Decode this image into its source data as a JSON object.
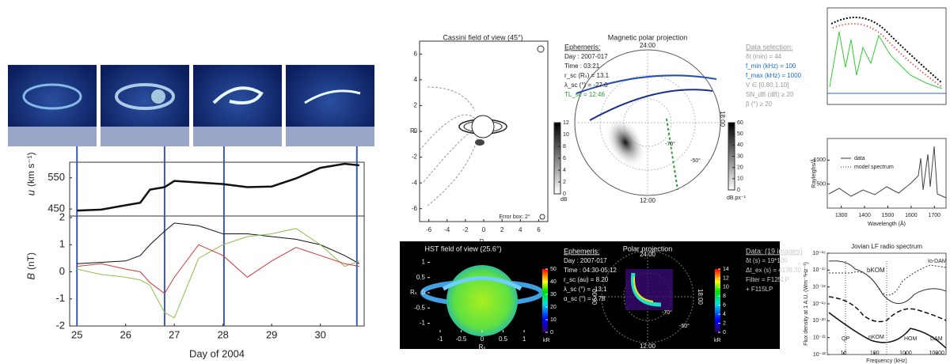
{
  "left": {
    "xlabel": "Day of 2004",
    "xlim": [
      24.85,
      30.9
    ],
    "xticks": [
      25,
      26,
      27,
      28,
      29,
      30
    ],
    "x": [
      25,
      25.5,
      26,
      26.3,
      26.5,
      26.8,
      27,
      27.5,
      28,
      28.5,
      29,
      29.5,
      30,
      30.5,
      30.8
    ],
    "events": [
      25,
      26.8,
      28.02,
      30.75
    ],
    "u": {
      "label_var": "u",
      "label_unit": "(km s⁻¹)",
      "ylim": [
        430,
        600
      ],
      "yticks": [
        450,
        550
      ],
      "color": "#111",
      "values": [
        445,
        448,
        462,
        470,
        512,
        520,
        540,
        535,
        530,
        520,
        522,
        548,
        582,
        595,
        590
      ]
    },
    "b": {
      "label_var": "B",
      "label_unit": "(nT)",
      "ylim": [
        -2,
        2
      ],
      "yticks": [
        2,
        1,
        0,
        -1,
        -2
      ],
      "series": [
        {
          "color": "#111",
          "values": [
            0.3,
            0.35,
            0.4,
            0.6,
            1.0,
            1.5,
            1.8,
            1.7,
            1.4,
            1.4,
            1.3,
            1.2,
            1.0,
            0.6,
            0.3
          ]
        },
        {
          "color": "#8fbf4d",
          "values": [
            0.1,
            -0.1,
            -0.2,
            -0.3,
            -0.5,
            -1.5,
            -1.7,
            0.5,
            1.0,
            1.3,
            1.4,
            1.6,
            1.0,
            0.2,
            0.4
          ]
        },
        {
          "color": "#d03a3a",
          "values": [
            0.2,
            0.3,
            0.1,
            0.0,
            -0.4,
            -0.8,
            -0.2,
            1.0,
            0.6,
            -0.2,
            0.4,
            0.9,
            0.6,
            0.3,
            0.2
          ]
        }
      ]
    }
  },
  "middle": {
    "cassini": {
      "title": "Cassini field of view (45°)",
      "axis_label": "Rₛ",
      "xlim": [
        -7,
        7
      ],
      "xticks": [
        -6,
        -4,
        -2,
        0,
        2,
        4,
        6
      ],
      "ylim": [
        -7,
        7
      ],
      "yticks": [
        6,
        4,
        2,
        0,
        -2,
        -4,
        -6
      ],
      "error_box": "Error box: 2°",
      "colorbar": {
        "lim": [
          0,
          12
        ],
        "ticks": [
          0,
          2,
          4,
          6,
          8,
          10,
          12
        ],
        "unit": "dB"
      }
    },
    "ephemeris_top": [
      "Ephemeris:",
      "Day   : 2007-017",
      "Time  : 03:21",
      "r_sc (Rₛ) = 13.1",
      "λ_sc (°)  = -27.0",
      "TL_sc = 12:46"
    ],
    "magnetic": {
      "title": "Magnetic polar projection",
      "labels": [
        "24:00",
        "18:00",
        "12:00",
        "-70°",
        "-50°"
      ],
      "colorbar": {
        "lim": [
          0,
          60
        ],
        "ticks": [
          0,
          10,
          20,
          30,
          40,
          50,
          60
        ],
        "unit": "dB.px⁻¹"
      }
    },
    "data_selection": [
      "Data selection:",
      "δt (min)  = 44",
      "f_min (kHz) = 100",
      "f_max (kHz) = 1000",
      "V  ∈ [0.80,1.10]",
      "SN_dB (dB) ≥ 20",
      "β (°)   ≥ 20"
    ],
    "hst": {
      "title": "HST field of view (25.6°)",
      "axis_label": "Rₛ",
      "xlim": [
        -1.3,
        1.3
      ],
      "xticks": [
        -1.0,
        -0.5,
        0.0,
        0.5,
        1.0
      ],
      "ylim": [
        -1.3,
        1.3
      ],
      "yticks": [
        1.0,
        0.5,
        0.0,
        -0.5,
        -1.0
      ],
      "colorbar": {
        "lim": [
          0,
          50
        ],
        "ticks": [
          0,
          10,
          20,
          30,
          40,
          50
        ],
        "unit": "kR"
      }
    },
    "ephemeris_bottom": [
      "Ephemeris:",
      "Day  : 2007-017",
      "Time : 04:30-05:12",
      "r_sc (au) = 8.20",
      "λ_sc (°)  = -13.1",
      "α_sc (°)  = 2.78"
    ],
    "polar": {
      "title": "Polar projection",
      "labels": [
        "24:00",
        "06:00",
        "18:00",
        "12:00",
        "-70°",
        "-50°"
      ],
      "colorbar": {
        "lim": [
          0,
          14
        ],
        "ticks": [
          0,
          2,
          4,
          6,
          8,
          10,
          12,
          14
        ],
        "unit": "kR"
      }
    },
    "data": [
      "Data: (19 images)",
      "δt (s)   = 19*100",
      "Δt_ex (s) = 4138.30",
      "Filter  = F125LP",
      "         + F115LP"
    ]
  },
  "right": {
    "uv": {
      "ylabel": "Rayleighs/Å",
      "xlabel": "Wavelength (Å)",
      "legend": [
        "data",
        "model spectrum"
      ],
      "xlim": [
        1240,
        1750
      ],
      "xticks": [
        1300,
        1400,
        1500,
        1600,
        1700
      ],
      "ylim": [
        0,
        1450
      ],
      "yticks": [
        500,
        1000
      ]
    },
    "radio": {
      "title": "Jovian LF radio spectrum",
      "ylabel": "Flux density at 1 A.U. (Wm⁻²Hz⁻¹)",
      "xlabel": "Frequency (kHz)",
      "log": true,
      "xlim": [
        3,
        20000
      ],
      "xticks": [
        10,
        100,
        1000,
        10000
      ],
      "ylim": [
        1e-22,
        1e-16
      ],
      "yticks": [
        {
          "value": 1e-16,
          "label": "10⁻¹⁶"
        },
        {
          "value": 1e-17,
          "label": "10⁻¹⁷"
        },
        {
          "value": 1e-18,
          "label": "10⁻¹⁸"
        },
        {
          "value": 1e-19,
          "label": "10⁻¹⁹"
        },
        {
          "value": 1e-20,
          "label": "10⁻²⁰"
        },
        {
          "value": 1e-21,
          "label": "10⁻²¹"
        },
        {
          "value": 1e-22,
          "label": "10⁻²²"
        }
      ],
      "components": [
        "QP",
        "bKOM",
        "nKOM",
        "HOM",
        "DAM",
        "Io-DAM"
      ]
    }
  }
}
